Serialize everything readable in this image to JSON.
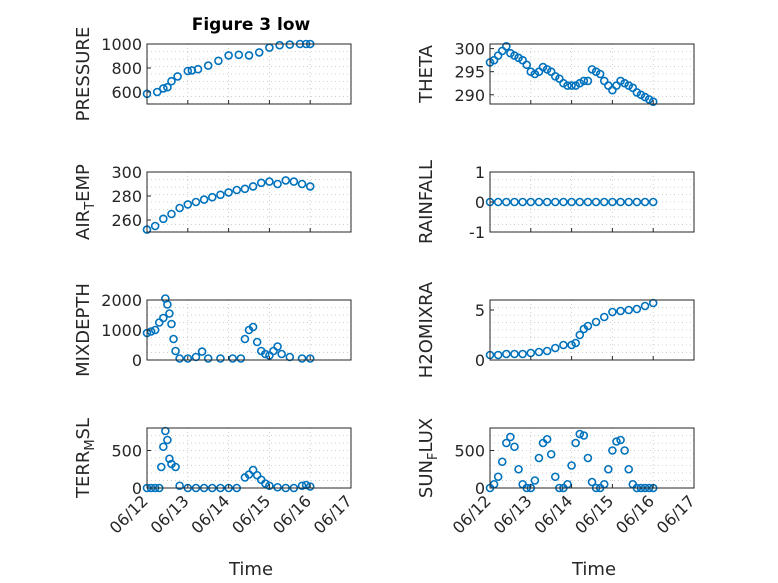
{
  "figure": {
    "title": "Figure 3 low",
    "xlabel": "Time"
  },
  "style": {
    "marker_color": "#0072BD",
    "axis_color": "#262626",
    "grid_color": "#d0d0d0"
  },
  "chart_data": [
    {
      "type": "scatter",
      "id": "pressure",
      "title": "Figure 3 low",
      "ylabel": "PRESSURE",
      "xlim": [
        0,
        5
      ],
      "ylim": [
        500,
        1000
      ],
      "yticks": [
        600,
        800,
        1000
      ],
      "ytick_labels": [
        "600",
        "800",
        "1000"
      ],
      "xticks": [
        0,
        1,
        2,
        3,
        4,
        5
      ],
      "xtick_labels": [
        "06/12",
        "06/13",
        "06/14",
        "06/15",
        "06/16",
        "06/17"
      ],
      "show_xtick_labels": false,
      "series": [
        {
          "x": [
            0.0,
            0.25,
            0.4,
            0.5,
            0.6,
            0.75,
            1.0,
            1.1,
            1.25,
            1.5,
            1.75,
            2.0,
            2.25,
            2.5,
            2.75,
            3.0,
            3.25,
            3.5,
            3.75,
            3.9,
            4.0
          ],
          "y": [
            585,
            600,
            630,
            640,
            690,
            730,
            775,
            780,
            790,
            820,
            860,
            905,
            910,
            905,
            930,
            970,
            990,
            995,
            1000,
            1000,
            1000
          ]
        }
      ]
    },
    {
      "type": "scatter",
      "id": "theta",
      "ylabel": "THETA",
      "xlim": [
        0,
        5
      ],
      "ylim": [
        288,
        301
      ],
      "yticks": [
        290,
        295,
        300
      ],
      "ytick_labels": [
        "290",
        "295",
        "300"
      ],
      "xticks": [
        0,
        1,
        2,
        3,
        4,
        5
      ],
      "xtick_labels": [
        "06/12",
        "06/13",
        "06/14",
        "06/15",
        "06/16",
        "06/17"
      ],
      "show_xtick_labels": false,
      "series": [
        {
          "x": [
            0.0,
            0.1,
            0.2,
            0.3,
            0.4,
            0.5,
            0.6,
            0.7,
            0.8,
            0.9,
            1.0,
            1.1,
            1.2,
            1.3,
            1.4,
            1.5,
            1.6,
            1.7,
            1.8,
            1.9,
            2.0,
            2.1,
            2.2,
            2.3,
            2.4,
            2.5,
            2.6,
            2.7,
            2.8,
            2.9,
            3.0,
            3.1,
            3.2,
            3.3,
            3.4,
            3.5,
            3.6,
            3.7,
            3.8,
            3.9,
            4.0
          ],
          "y": [
            297,
            297.5,
            298.5,
            299.5,
            300.5,
            299,
            298.5,
            298,
            297.5,
            296.5,
            295,
            294.5,
            295,
            296,
            295.5,
            295,
            294,
            293.5,
            292.5,
            292,
            292,
            292,
            292.5,
            293,
            293,
            295.5,
            295,
            294.5,
            293,
            292,
            291,
            292,
            293,
            292.5,
            292,
            291.5,
            290.5,
            290,
            289.5,
            289,
            288.5
          ]
        }
      ]
    },
    {
      "type": "scatter",
      "id": "air-temp",
      "ylabel": "AIR_TEMP",
      "xlim": [
        0,
        5
      ],
      "ylim": [
        250,
        300
      ],
      "yticks": [
        260,
        280,
        300
      ],
      "ytick_labels": [
        "260",
        "280",
        "300"
      ],
      "xticks": [
        0,
        1,
        2,
        3,
        4,
        5
      ],
      "xtick_labels": [
        "06/12",
        "06/13",
        "06/14",
        "06/15",
        "06/16",
        "06/17"
      ],
      "show_xtick_labels": false,
      "series": [
        {
          "x": [
            0.0,
            0.2,
            0.4,
            0.6,
            0.8,
            1.0,
            1.2,
            1.4,
            1.6,
            1.8,
            2.0,
            2.2,
            2.4,
            2.6,
            2.8,
            3.0,
            3.2,
            3.4,
            3.6,
            3.8,
            4.0
          ],
          "y": [
            252,
            255,
            261,
            265,
            270,
            273,
            275,
            277,
            279,
            281,
            283,
            285,
            286,
            288,
            291,
            292,
            290,
            293,
            292,
            290,
            288
          ]
        }
      ]
    },
    {
      "type": "scatter",
      "id": "rainfall",
      "ylabel": "RAINFALL",
      "xlim": [
        0,
        5
      ],
      "ylim": [
        -1,
        1
      ],
      "yticks": [
        -1,
        0,
        1
      ],
      "ytick_labels": [
        "-1",
        "0",
        "1"
      ],
      "xticks": [
        0,
        1,
        2,
        3,
        4,
        5
      ],
      "xtick_labels": [
        "06/12",
        "06/13",
        "06/14",
        "06/15",
        "06/16",
        "06/17"
      ],
      "show_xtick_labels": false,
      "series": [
        {
          "x": [
            0.0,
            0.2,
            0.4,
            0.6,
            0.8,
            1.0,
            1.2,
            1.4,
            1.6,
            1.8,
            2.0,
            2.2,
            2.4,
            2.6,
            2.8,
            3.0,
            3.2,
            3.4,
            3.6,
            3.8,
            4.0
          ],
          "y": [
            0,
            0,
            0,
            0,
            0,
            0,
            0,
            0,
            0,
            0,
            0,
            0,
            0,
            0,
            0,
            0,
            0,
            0,
            0,
            0,
            0
          ]
        }
      ]
    },
    {
      "type": "scatter",
      "id": "mixdepth",
      "ylabel": "MIXDEPTH",
      "xlim": [
        0,
        5
      ],
      "ylim": [
        0,
        2000
      ],
      "yticks": [
        0,
        1000,
        2000
      ],
      "ytick_labels": [
        "0",
        "1000",
        "2000"
      ],
      "xticks": [
        0,
        1,
        2,
        3,
        4,
        5
      ],
      "xtick_labels": [
        "06/12",
        "06/13",
        "06/14",
        "06/15",
        "06/16",
        "06/17"
      ],
      "show_xtick_labels": false,
      "series": [
        {
          "x": [
            0.0,
            0.1,
            0.2,
            0.3,
            0.4,
            0.45,
            0.5,
            0.55,
            0.6,
            0.65,
            0.7,
            0.8,
            1.0,
            1.2,
            1.35,
            1.5,
            1.8,
            2.1,
            2.3,
            2.4,
            2.5,
            2.6,
            2.7,
            2.8,
            2.9,
            3.0,
            3.1,
            3.2,
            3.3,
            3.5,
            3.8,
            4.0
          ],
          "y": [
            900,
            950,
            1000,
            1250,
            1400,
            2050,
            1850,
            1550,
            1200,
            700,
            300,
            50,
            50,
            100,
            280,
            50,
            50,
            50,
            50,
            700,
            1000,
            1100,
            600,
            300,
            200,
            150,
            300,
            450,
            200,
            100,
            50,
            50
          ]
        }
      ]
    },
    {
      "type": "scatter",
      "id": "h2omixra",
      "ylabel": "H2OMIXRA",
      "xlim": [
        0,
        5
      ],
      "ylim": [
        0,
        6
      ],
      "yticks": [
        0,
        5
      ],
      "ytick_labels": [
        "0",
        "5"
      ],
      "xticks": [
        0,
        1,
        2,
        3,
        4,
        5
      ],
      "xtick_labels": [
        "06/12",
        "06/13",
        "06/14",
        "06/15",
        "06/16",
        "06/17"
      ],
      "show_xtick_labels": false,
      "series": [
        {
          "x": [
            0.0,
            0.2,
            0.4,
            0.6,
            0.8,
            1.0,
            1.2,
            1.4,
            1.6,
            1.8,
            2.0,
            2.1,
            2.2,
            2.3,
            2.4,
            2.6,
            2.8,
            3.0,
            3.2,
            3.4,
            3.6,
            3.8,
            4.0
          ],
          "y": [
            0.5,
            0.5,
            0.6,
            0.6,
            0.6,
            0.7,
            0.8,
            0.9,
            1.2,
            1.5,
            1.5,
            1.7,
            2.5,
            3.1,
            3.4,
            3.8,
            4.3,
            4.8,
            4.9,
            5.0,
            5.1,
            5.4,
            5.7
          ]
        }
      ]
    },
    {
      "type": "scatter",
      "id": "terr-msl",
      "ylabel": "TERR_MSL",
      "xlim": [
        0,
        5
      ],
      "ylim": [
        0,
        800
      ],
      "yticks": [
        0,
        500
      ],
      "ytick_labels": [
        "0",
        "500"
      ],
      "xticks": [
        0,
        1,
        2,
        3,
        4,
        5
      ],
      "xtick_labels": [
        "06/12",
        "06/13",
        "06/14",
        "06/15",
        "06/16",
        "06/17"
      ],
      "show_xtick_labels": true,
      "series": [
        {
          "x": [
            0.0,
            0.1,
            0.2,
            0.3,
            0.35,
            0.4,
            0.45,
            0.5,
            0.55,
            0.6,
            0.7,
            0.8,
            1.0,
            1.2,
            1.4,
            1.6,
            1.8,
            2.0,
            2.2,
            2.4,
            2.5,
            2.6,
            2.7,
            2.8,
            2.9,
            3.0,
            3.2,
            3.4,
            3.6,
            3.8,
            3.9,
            4.0
          ],
          "y": [
            0,
            0,
            0,
            0,
            280,
            550,
            760,
            640,
            390,
            320,
            280,
            30,
            0,
            0,
            0,
            0,
            0,
            0,
            0,
            140,
            180,
            240,
            170,
            110,
            60,
            30,
            10,
            0,
            0,
            30,
            40,
            20
          ]
        }
      ]
    },
    {
      "type": "scatter",
      "id": "sun-flux",
      "ylabel": "SUN_FLUX",
      "xlim": [
        0,
        5
      ],
      "ylim": [
        0,
        800
      ],
      "yticks": [
        0,
        500
      ],
      "ytick_labels": [
        "0",
        "500"
      ],
      "xticks": [
        0,
        1,
        2,
        3,
        4,
        5
      ],
      "xtick_labels": [
        "06/12",
        "06/13",
        "06/14",
        "06/15",
        "06/16",
        "06/17"
      ],
      "show_xtick_labels": true,
      "series": [
        {
          "x": [
            0.0,
            0.1,
            0.2,
            0.3,
            0.4,
            0.5,
            0.6,
            0.7,
            0.8,
            0.9,
            1.0,
            1.1,
            1.2,
            1.3,
            1.4,
            1.5,
            1.6,
            1.7,
            1.8,
            1.9,
            2.0,
            2.1,
            2.2,
            2.3,
            2.4,
            2.5,
            2.6,
            2.7,
            2.8,
            2.9,
            3.0,
            3.1,
            3.2,
            3.3,
            3.4,
            3.5,
            3.6,
            3.7,
            3.8,
            3.9,
            4.0
          ],
          "y": [
            0,
            50,
            150,
            350,
            600,
            680,
            550,
            250,
            50,
            0,
            0,
            100,
            400,
            600,
            650,
            450,
            150,
            0,
            0,
            50,
            300,
            600,
            720,
            700,
            400,
            80,
            0,
            0,
            50,
            250,
            500,
            620,
            640,
            500,
            250,
            50,
            0,
            0,
            0,
            0,
            0
          ]
        }
      ]
    }
  ]
}
